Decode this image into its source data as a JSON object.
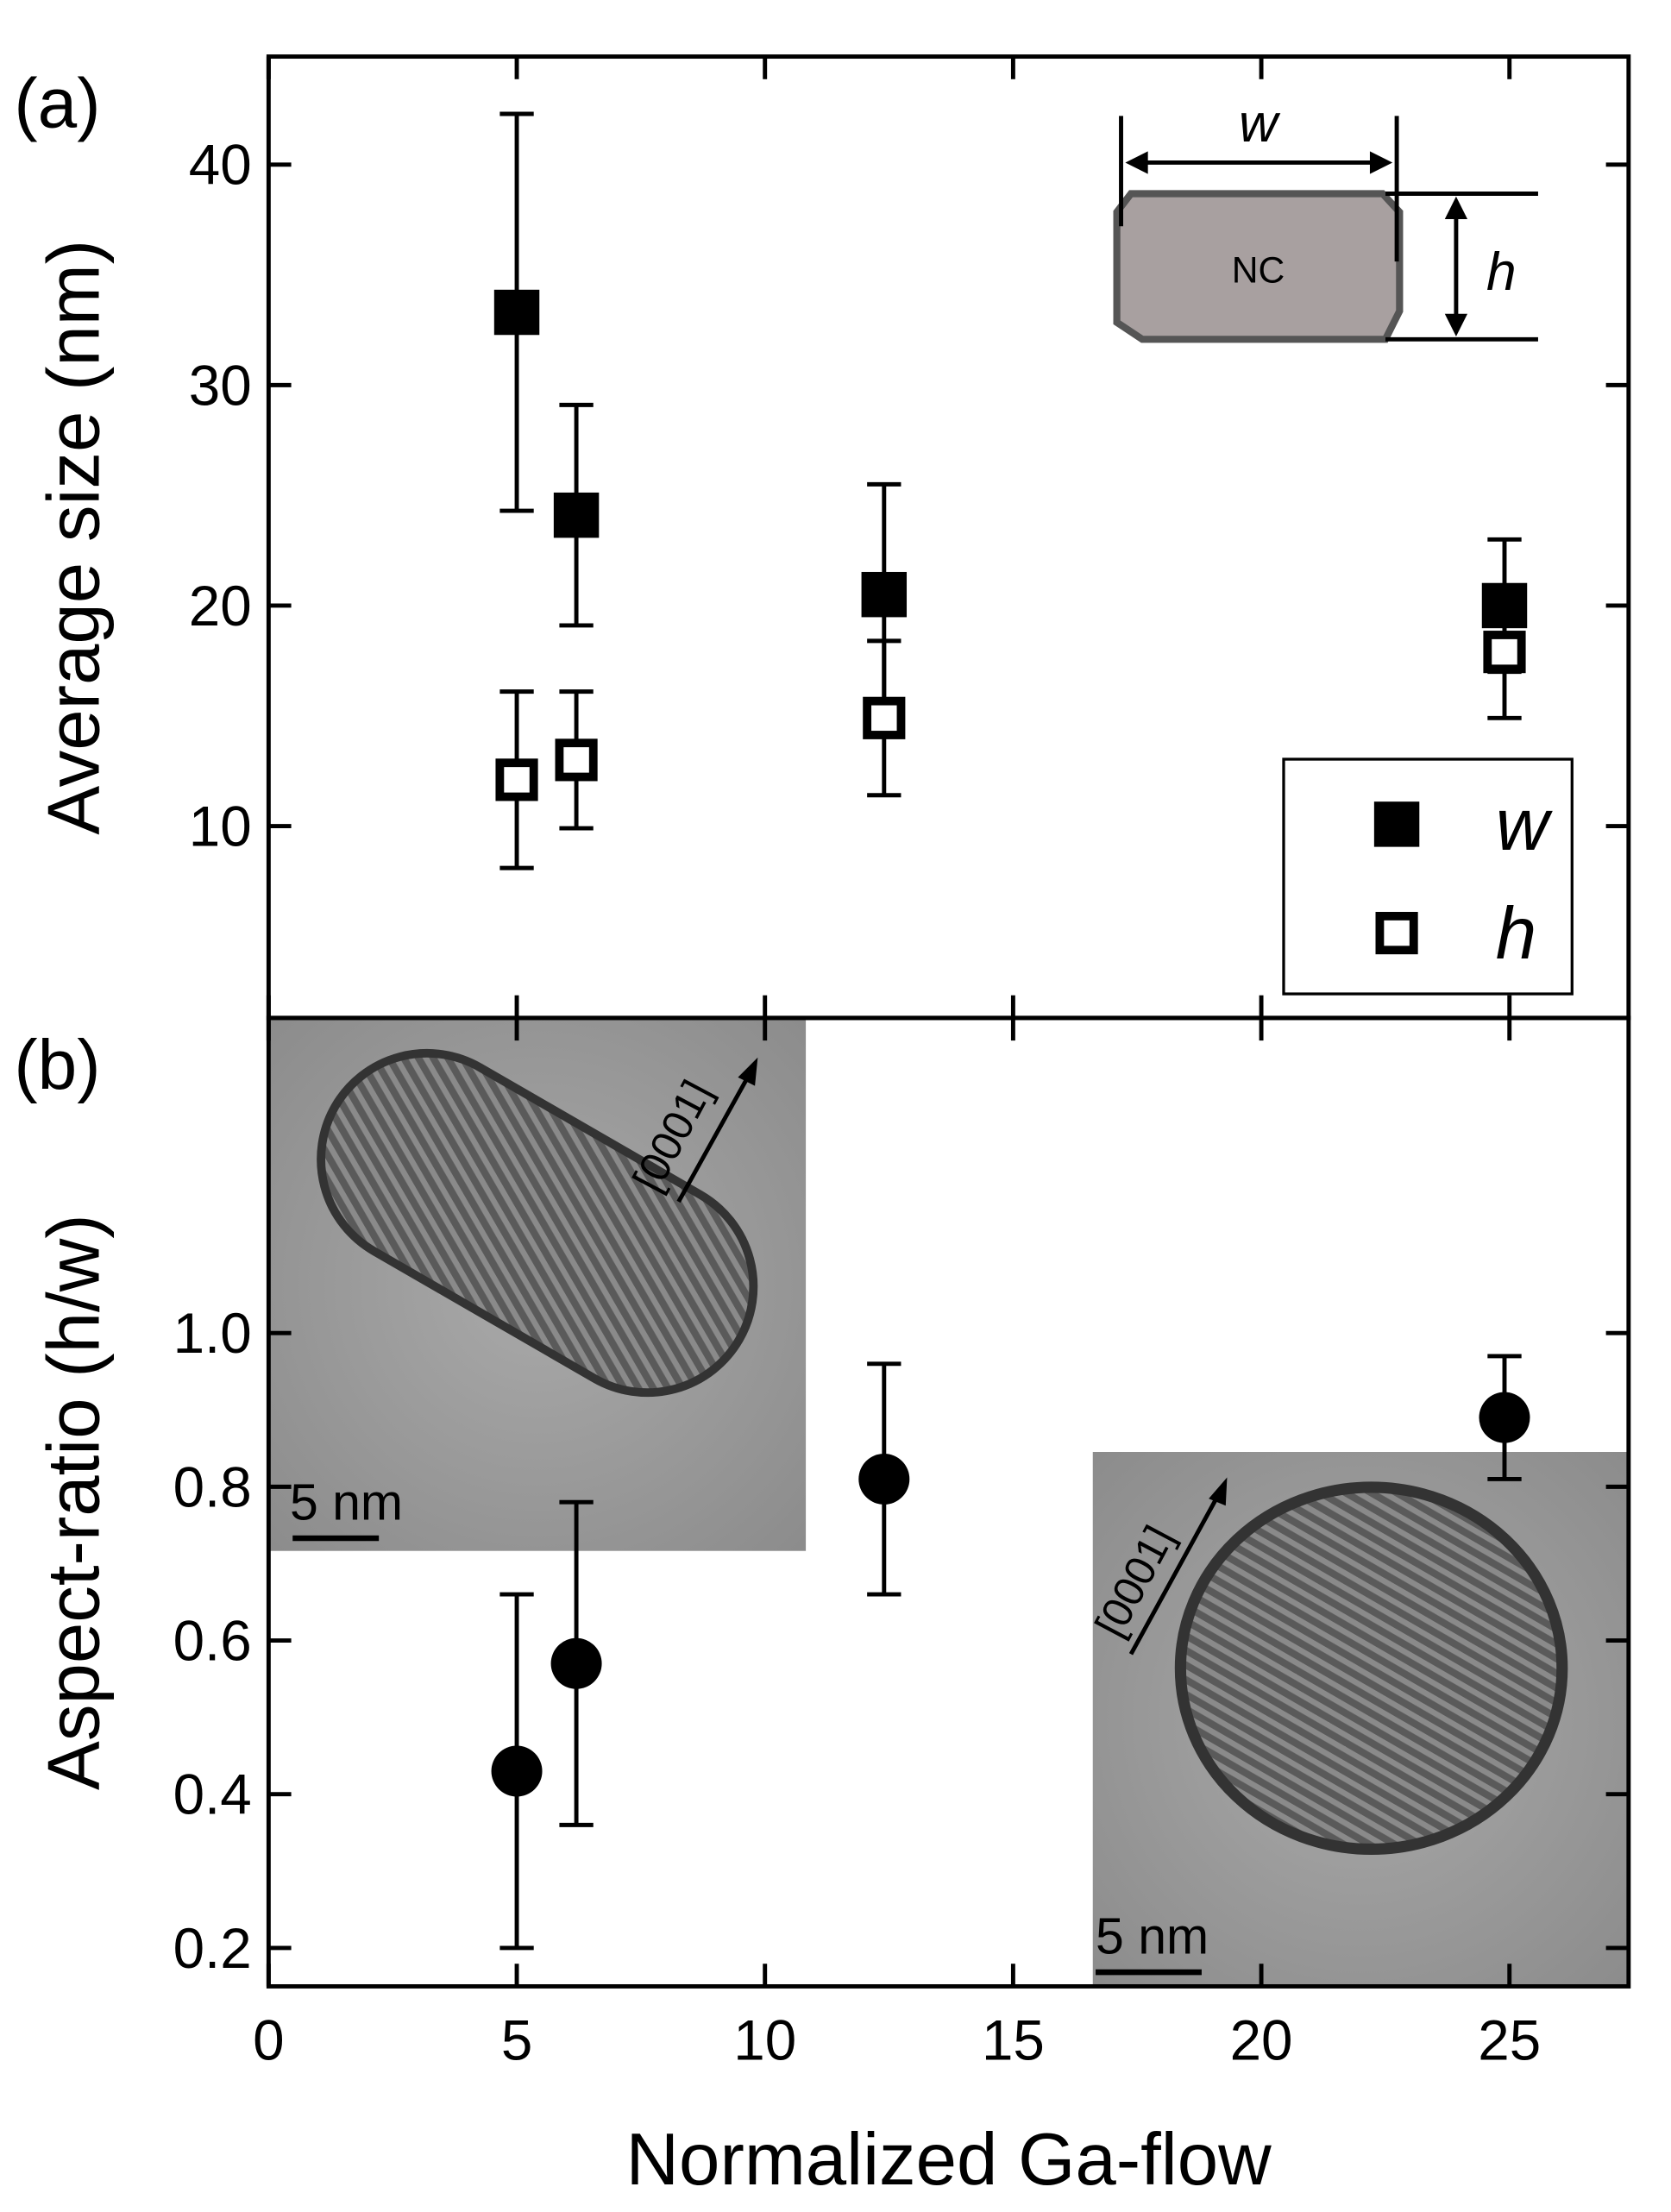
{
  "chart_data": [
    {
      "type": "scatter",
      "label": "(a)",
      "ylabel": "Average size (nm)",
      "x": [
        5,
        6.2,
        12.4,
        24.9
      ],
      "xlim": [
        0,
        27.4
      ],
      "ylim": [
        1.3,
        44.9
      ],
      "yticks": [
        10,
        20,
        30,
        40
      ],
      "series": [
        {
          "name": "w",
          "color": "#000000",
          "marker": "filled-square",
          "values": [
            33.3,
            24.1,
            20.5,
            20.0
          ],
          "errors": [
            9.0,
            5.0,
            5.0,
            3.0
          ]
        },
        {
          "name": "h",
          "color": "#000000",
          "marker": "open-square",
          "values": [
            12.1,
            13.0,
            14.9,
            17.9
          ],
          "errors": [
            4.0,
            3.1,
            3.5,
            3.0
          ]
        }
      ],
      "legend": "lower right",
      "inset": {
        "body_label": "NC",
        "width_label": "w",
        "height_label": "h"
      }
    },
    {
      "type": "scatter",
      "label": "(b)",
      "ylabel": "Aspect-ratio (h/w)",
      "xlabel": "Normalized Ga-flow",
      "x": [
        5,
        6.2,
        12.4,
        24.9
      ],
      "xlim": [
        0,
        27.4
      ],
      "xticks": [
        0,
        5,
        10,
        15,
        20,
        25
      ],
      "ylim": [
        0.15,
        1.41
      ],
      "yticks": [
        0.2,
        0.4,
        0.6,
        0.8,
        {
          "value": 1,
          "label": "1.0"
        }
      ],
      "series": [
        {
          "color": "#000000",
          "marker": "filled-circle",
          "values": [
            0.43,
            0.57,
            0.81,
            0.89
          ],
          "errors": [
            0.23,
            0.21,
            0.15,
            0.08
          ]
        }
      ],
      "images": [
        {
          "scale_label": "5 nm",
          "direction_label": "[0001]"
        },
        {
          "scale_label": "5 nm",
          "direction_label": "[0001]"
        }
      ]
    }
  ]
}
